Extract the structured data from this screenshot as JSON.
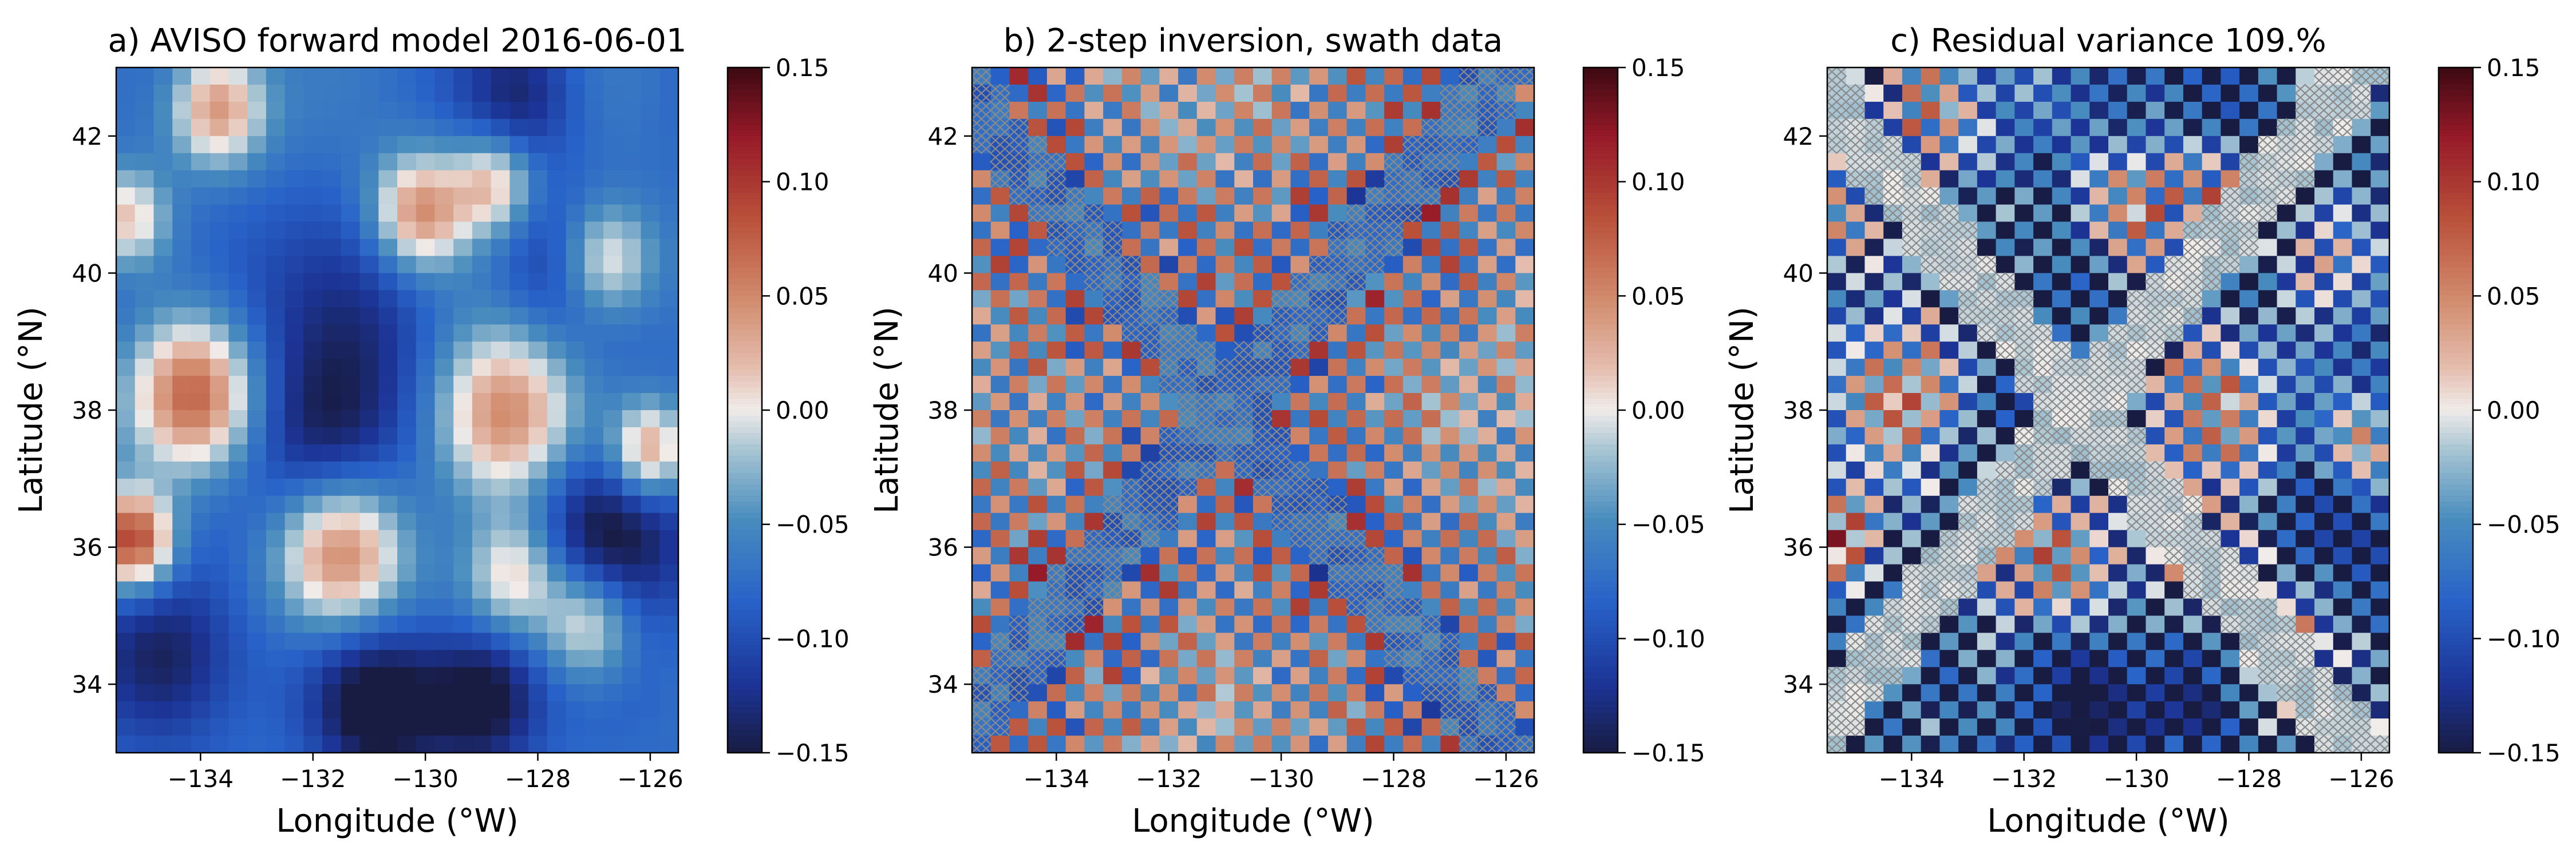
{
  "chart_data": [
    {
      "type": "heatmap",
      "title": "a) AVISO forward model 2016-06-01",
      "xlabel": "Longitude (°W)",
      "ylabel": "Latitude (°N)",
      "xlim": [
        -135.5,
        -125.5
      ],
      "ylim": [
        33,
        43
      ],
      "x_ticks": [
        -134,
        -132,
        -130,
        -128,
        -126
      ],
      "x_tick_labels": [
        "−134",
        "−132",
        "−130",
        "−128",
        "−126"
      ],
      "y_ticks": [
        34,
        36,
        38,
        40,
        42
      ],
      "y_tick_labels": [
        "34",
        "36",
        "38",
        "40",
        "42"
      ],
      "colorbar": {
        "vmin": -0.15,
        "vmax": 0.15,
        "colormap": "balance",
        "ticks": [
          -0.15,
          -0.1,
          -0.05,
          0.0,
          0.05,
          0.1,
          0.15
        ],
        "tick_labels": [
          "−0.15",
          "−0.10",
          "−0.05",
          "0.00",
          "0.05",
          "0.10",
          "0.15"
        ]
      },
      "grid": {
        "nx": 30,
        "ny": 40
      },
      "hatched": false,
      "features": [
        {
          "lon": -133.7,
          "lat": 42.4,
          "value": 0.05,
          "radius": 0.6
        },
        {
          "lon": -130.1,
          "lat": 40.9,
          "value": 0.05,
          "radius": 0.6
        },
        {
          "lon": -128.8,
          "lat": 41.3,
          "value": 0.02,
          "radius": 0.5
        },
        {
          "lon": -126.8,
          "lat": 40.2,
          "value": 0.03,
          "radius": 0.6
        },
        {
          "lon": -135.3,
          "lat": 40.8,
          "value": 0.02,
          "radius": 0.5
        },
        {
          "lon": -134.1,
          "lat": 38.2,
          "value": 0.09,
          "radius": 0.8
        },
        {
          "lon": -128.6,
          "lat": 37.9,
          "value": 0.06,
          "radius": 0.9
        },
        {
          "lon": -126.0,
          "lat": 37.4,
          "value": 0.05,
          "radius": 0.5
        },
        {
          "lon": -135.2,
          "lat": 36.1,
          "value": 0.1,
          "radius": 0.5
        },
        {
          "lon": -131.5,
          "lat": 35.9,
          "value": 0.06,
          "radius": 0.8
        },
        {
          "lon": -128.4,
          "lat": 35.6,
          "value": 0.02,
          "radius": 0.6
        },
        {
          "lon": -127.1,
          "lat": 34.9,
          "value": 0.03,
          "radius": 0.6
        },
        {
          "lon": -128.3,
          "lat": 42.6,
          "value": -0.13,
          "radius": 0.7
        },
        {
          "lon": -127.6,
          "lat": 40.1,
          "value": -0.12,
          "radius": 0.8
        },
        {
          "lon": -133.6,
          "lat": 39.6,
          "value": -0.1,
          "radius": 1.1
        },
        {
          "lon": -130.9,
          "lat": 39.3,
          "value": -0.11,
          "radius": 1.1
        },
        {
          "lon": -131.8,
          "lat": 37.6,
          "value": -0.15,
          "radius": 1.0
        },
        {
          "lon": -126.8,
          "lat": 36.2,
          "value": -0.17,
          "radius": 1.0
        },
        {
          "lon": -134.6,
          "lat": 34.4,
          "value": -0.15,
          "radius": 0.9
        },
        {
          "lon": -130.8,
          "lat": 33.7,
          "value": -0.17,
          "radius": 0.8
        },
        {
          "lon": -129.0,
          "lat": 33.8,
          "value": -0.17,
          "radius": 0.7
        }
      ]
    },
    {
      "type": "heatmap",
      "title": "b) 2-step inversion, swath data",
      "xlabel": "Longitude (°W)",
      "ylabel": "Latitude (°N)",
      "xlim": [
        -135.5,
        -125.5
      ],
      "ylim": [
        33,
        43
      ],
      "x_ticks": [
        -134,
        -132,
        -130,
        -128,
        -126
      ],
      "x_tick_labels": [
        "−134",
        "−132",
        "−130",
        "−128",
        "−126"
      ],
      "y_ticks": [
        34,
        36,
        38,
        40,
        42
      ],
      "y_tick_labels": [
        "34",
        "36",
        "38",
        "40",
        "42"
      ],
      "colorbar": {
        "vmin": -0.15,
        "vmax": 0.15,
        "colormap": "balance",
        "ticks": [
          -0.15,
          -0.1,
          -0.05,
          0.0,
          0.05,
          0.1,
          0.15
        ],
        "tick_labels": [
          "−0.15",
          "−0.10",
          "−0.05",
          "0.00",
          "0.05",
          "0.10",
          "0.15"
        ]
      },
      "grid": {
        "nx": 30,
        "ny": 40
      },
      "hatched": true,
      "hatch_pattern": "X-shaped swaths crossing at (-131.0, 38.0)"
    },
    {
      "type": "heatmap",
      "title": "c) Residual variance 109.%",
      "xlabel": "Longitude (°W)",
      "ylabel": "Latitude (°N)",
      "xlim": [
        -135.5,
        -125.5
      ],
      "ylim": [
        33,
        43
      ],
      "x_ticks": [
        -134,
        -132,
        -130,
        -128,
        -126
      ],
      "x_tick_labels": [
        "−134",
        "−132",
        "−130",
        "−128",
        "−126"
      ],
      "y_ticks": [
        34,
        36,
        38,
        40,
        42
      ],
      "y_tick_labels": [
        "34",
        "36",
        "38",
        "40",
        "42"
      ],
      "colorbar": {
        "vmin": -0.15,
        "vmax": 0.15,
        "colormap": "balance",
        "ticks": [
          -0.15,
          -0.1,
          -0.05,
          0.0,
          0.05,
          0.1,
          0.15
        ],
        "tick_labels": [
          "−0.15",
          "−0.10",
          "−0.05",
          "0.00",
          "0.05",
          "0.10",
          "0.15"
        ]
      },
      "grid": {
        "nx": 30,
        "ny": 40
      },
      "hatched": true,
      "hatch_pattern": "X-shaped swaths crossing at (-131.0, 38.0)"
    }
  ]
}
